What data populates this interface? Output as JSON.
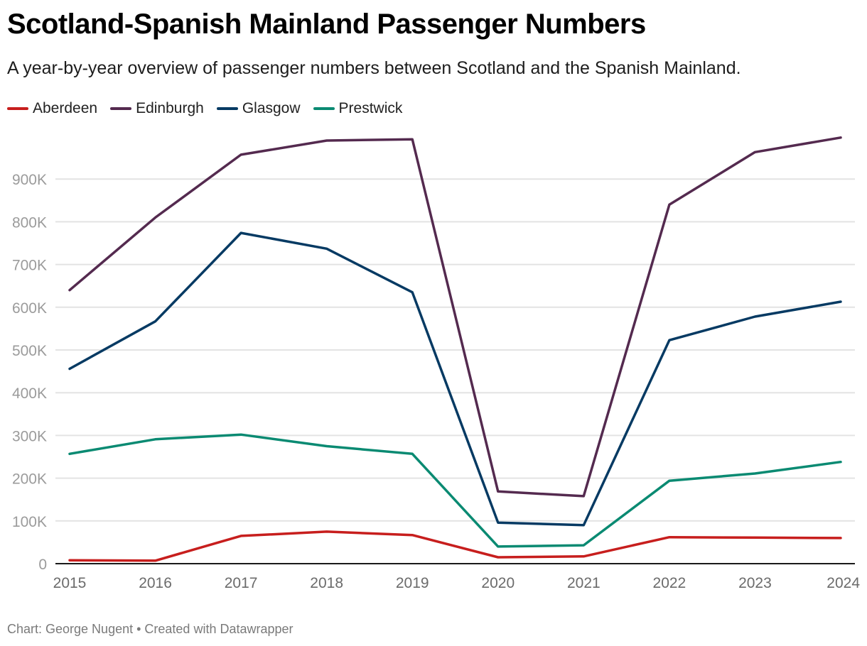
{
  "header": {
    "title": "Scotland-Spanish Mainland Passenger Numbers",
    "subtitle": "A year-by-year overview of passenger numbers between Scotland and the Spanish Mainland."
  },
  "footer": {
    "credit": "Chart: George Nugent • Created with Datawrapper"
  },
  "chart_data": {
    "type": "line",
    "title": "Scotland-Spanish Mainland Passenger Numbers",
    "subtitle": "A year-by-year overview of passenger numbers between Scotland and the Spanish Mainland.",
    "xlabel": "",
    "ylabel": "",
    "x": [
      "2015",
      "2016",
      "2017",
      "2018",
      "2019",
      "2020",
      "2021",
      "2022",
      "2023",
      "2024"
    ],
    "ylim": [
      0,
      1000000
    ],
    "yticks": [
      0,
      100000,
      200000,
      300000,
      400000,
      500000,
      600000,
      700000,
      800000,
      900000
    ],
    "ytick_labels": [
      "0",
      "100K",
      "200K",
      "300K",
      "400K",
      "500K",
      "600K",
      "700K",
      "800K",
      "900K"
    ],
    "grid": true,
    "legend_position": "top-left",
    "series": [
      {
        "name": "Aberdeen",
        "color": "#c71e1d",
        "values": [
          8000,
          7000,
          65000,
          75000,
          67000,
          15000,
          17000,
          62000,
          61000,
          60000
        ]
      },
      {
        "name": "Edinburgh",
        "color": "#542a4f",
        "values": [
          640000,
          810000,
          957000,
          990000,
          993000,
          169000,
          158000,
          840000,
          963000,
          997000
        ]
      },
      {
        "name": "Glasgow",
        "color": "#063a63",
        "values": [
          456000,
          567000,
          774000,
          737000,
          635000,
          96000,
          90000,
          523000,
          578000,
          613000
        ]
      },
      {
        "name": "Prestwick",
        "color": "#0a8a72",
        "values": [
          257000,
          291000,
          302000,
          275000,
          257000,
          40000,
          43000,
          194000,
          211000,
          238000
        ]
      }
    ],
    "source": "Chart: George Nugent • Created with Datawrapper"
  }
}
